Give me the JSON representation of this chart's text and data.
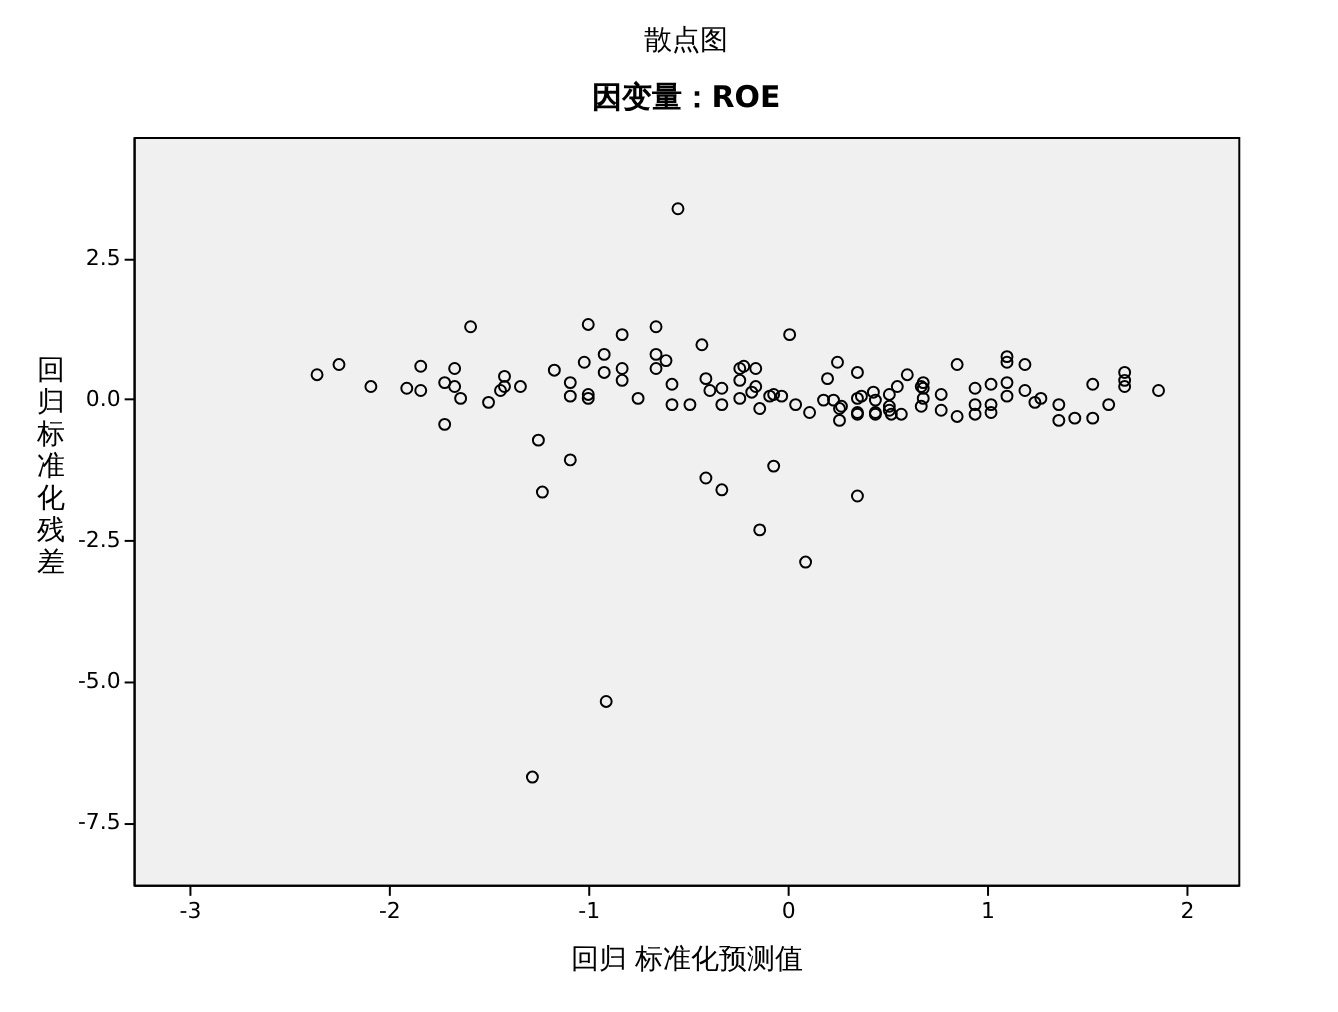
{
  "chart_data": {
    "type": "scatter",
    "title": "散点图",
    "subtitle": "因变量：ROE",
    "xlabel": "回归 标准化预测值",
    "ylabel": "回归标准化残差",
    "xlim": [
      -3.28,
      2.26
    ],
    "ylim": [
      -8.61,
      4.64
    ],
    "xticks": [
      -3,
      -2,
      -1,
      0,
      1,
      2
    ],
    "yticks": [
      2.5,
      {
        "value": 0,
        "label": "0.0"
      },
      -2.5,
      {
        "value": -5,
        "label": "-5.0"
      },
      {
        "value": -7.5,
        "label": "-7.5"
      }
    ],
    "grid": false,
    "legend": false,
    "marker": "circle",
    "series": [
      {
        "color": "#000000",
        "x": [
          -2.36,
          -2.25,
          -2.09,
          -1.91,
          -1.84,
          -1.84,
          -1.72,
          -1.72,
          -1.67,
          -1.67,
          -1.64,
          -1.59,
          -1.5,
          -1.42,
          -1.42,
          -1.44,
          -1.34,
          -1.25,
          -1.23,
          -1.17,
          -1.09,
          -1.09,
          -1.09,
          -1.02,
          -1.0,
          -1.0,
          -1.0,
          -0.92,
          -0.92,
          -0.83,
          -0.83,
          -0.83,
          -0.75,
          -0.55,
          -0.66,
          -0.66,
          -0.61,
          -0.66,
          -0.58,
          -0.58,
          -0.49,
          -0.43,
          -0.41,
          -0.39,
          -0.33,
          -0.33,
          -0.24,
          -0.22,
          -0.24,
          -0.24,
          -0.16,
          -0.16,
          -0.18,
          -0.14,
          -0.07,
          -0.09,
          -0.03,
          0.01,
          0.04,
          0.11,
          0.18,
          0.2,
          0.25,
          0.23,
          0.26,
          0.26,
          0.35,
          0.35,
          0.35,
          0.37,
          0.44,
          0.51,
          0.51,
          0.55,
          0.57,
          0.6,
          0.67,
          0.67,
          -0.41,
          -0.33,
          -0.07,
          0.35,
          -0.91,
          -1.28,
          -0.14,
          0.09,
          0.27,
          0.35,
          0.43,
          0.44,
          0.44,
          0.51,
          0.52,
          0.68,
          0.68,
          0.68,
          0.77,
          0.77,
          0.85,
          0.85,
          0.94,
          0.94,
          0.94,
          1.02,
          1.02,
          1.02,
          1.1,
          1.1,
          1.1,
          1.1,
          1.19,
          1.19,
          1.24,
          1.27,
          1.36,
          1.36,
          1.44,
          1.53,
          1.53,
          1.61,
          1.69,
          1.69,
          1.69,
          1.86
        ],
        "values": [
          0.43,
          0.61,
          0.22,
          0.19,
          0.58,
          0.15,
          0.29,
          -0.45,
          0.54,
          0.22,
          0.01,
          1.28,
          -0.06,
          0.4,
          0.22,
          0.15,
          0.22,
          -0.73,
          -1.65,
          0.51,
          0.29,
          0.05,
          -1.08,
          0.65,
          1.32,
          0.08,
          0.01,
          0.79,
          0.47,
          1.14,
          0.54,
          0.33,
          0.01,
          3.37,
          1.28,
          0.79,
          0.68,
          0.54,
          0.26,
          -0.1,
          -0.1,
          0.96,
          0.36,
          0.15,
          0.19,
          -0.1,
          0.54,
          0.58,
          0.33,
          0.01,
          0.54,
          0.22,
          0.12,
          -0.17,
          0.08,
          0.05,
          0.05,
          1.14,
          -0.1,
          -0.24,
          -0.02,
          0.36,
          0.65,
          -0.02,
          -0.17,
          -0.38,
          0.47,
          0.01,
          -0.24,
          0.05,
          -0.24,
          0.08,
          -0.2,
          0.22,
          -0.27,
          0.43,
          0.22,
          -0.13,
          -1.4,
          -1.61,
          -1.19,
          -1.72,
          -5.36,
          -6.7,
          -2.32,
          -2.89,
          -0.13,
          -0.27,
          0.12,
          -0.02,
          -0.27,
          -0.13,
          -0.27,
          0.29,
          0.19,
          0.01,
          0.08,
          -0.2,
          0.61,
          -0.31,
          0.19,
          -0.1,
          -0.27,
          0.26,
          -0.1,
          -0.24,
          0.75,
          0.65,
          0.29,
          0.05,
          0.61,
          0.15,
          -0.06,
          0.01,
          -0.1,
          -0.38,
          -0.34,
          0.26,
          -0.34,
          -0.1,
          0.47,
          0.33,
          0.22,
          0.15
        ]
      }
    ]
  }
}
